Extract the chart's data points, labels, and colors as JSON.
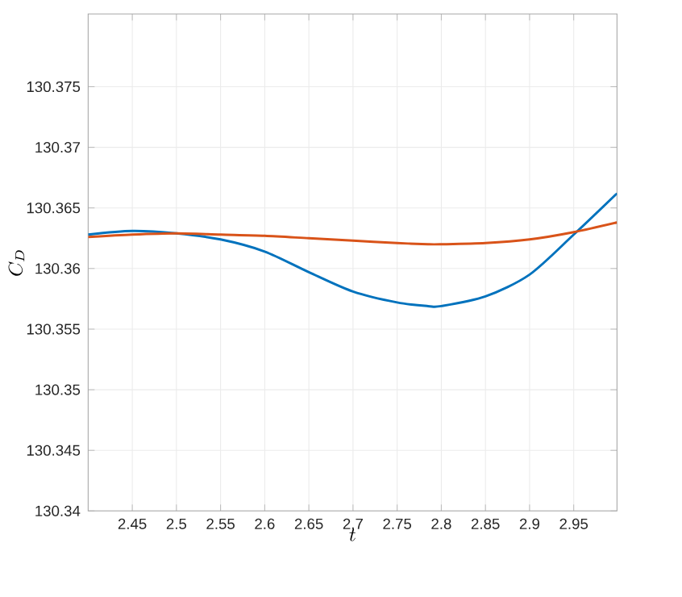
{
  "chart_data": {
    "type": "line",
    "xlabel": "t",
    "ylabel": "C_D",
    "x": [
      2.4,
      2.45,
      2.5,
      2.55,
      2.6,
      2.65,
      2.7,
      2.75,
      2.785,
      2.8,
      2.85,
      2.9,
      2.95,
      2.999
    ],
    "series": [
      {
        "color": "#0072bd",
        "values": [
          130.3628,
          130.3631,
          130.3629,
          130.3624,
          130.3614,
          130.3597,
          130.3581,
          130.3572,
          130.3569,
          130.3569,
          130.3577,
          130.3595,
          130.3628,
          130.3662
        ]
      },
      {
        "color": "#d95319",
        "values": [
          130.3626,
          130.3628,
          130.3629,
          130.3628,
          130.3627,
          130.3625,
          130.3623,
          130.3621,
          130.362,
          130.362,
          130.3621,
          130.3624,
          130.363,
          130.3638
        ]
      }
    ],
    "xlim": [
      2.4,
      2.999
    ],
    "ylim": [
      130.34,
      130.381
    ],
    "xticks": [
      2.45,
      2.5,
      2.55,
      2.6,
      2.65,
      2.7,
      2.75,
      2.8,
      2.85,
      2.9,
      2.95
    ],
    "yticks": [
      130.34,
      130.345,
      130.35,
      130.355,
      130.36,
      130.365,
      130.37,
      130.375
    ],
    "grid": true
  }
}
